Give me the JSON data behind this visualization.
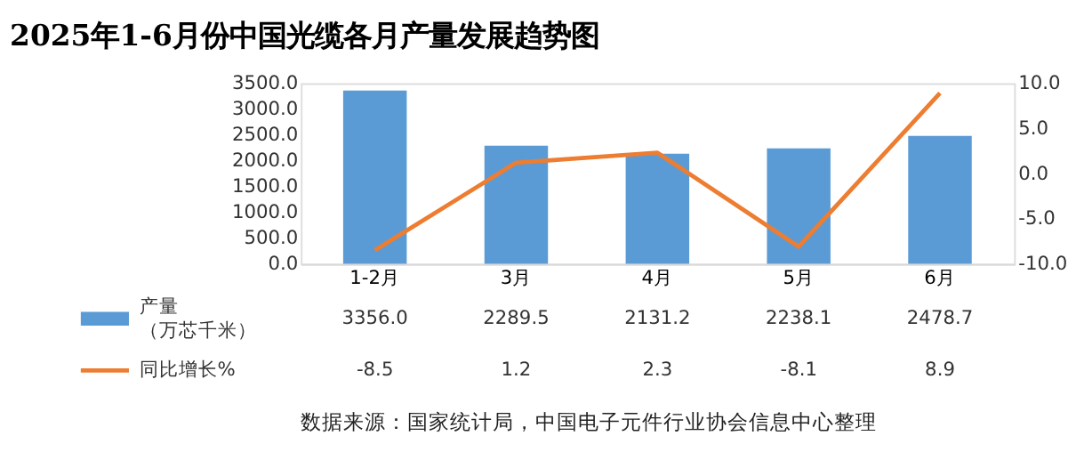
{
  "chart_data": {
    "type": "bar",
    "title": "2025年1-6月份中国光缆各月产量发展趋势图",
    "categories": [
      "1-2月",
      "3月",
      "4月",
      "5月",
      "6月"
    ],
    "series": [
      {
        "name": "产量（万芯千米）",
        "color": "#5b9bd5",
        "values": [
          3356.0,
          2289.5,
          2131.2,
          2238.1,
          2478.7
        ],
        "value_labels": [
          "3356.0",
          "2289.5",
          "2131.2",
          "2238.1",
          "2478.7"
        ]
      },
      {
        "name": "同比增长%",
        "type": "line",
        "axis": "y2",
        "color": "#ed7d31",
        "values": [
          -8.5,
          1.2,
          2.3,
          -8.1,
          8.9
        ],
        "value_labels": [
          "-8.5",
          "1.2",
          "2.3",
          "-8.1",
          "8.9"
        ]
      }
    ],
    "ylim": [
      0,
      3500
    ],
    "yticks": [
      {
        "value": 0,
        "label": "0.0"
      },
      {
        "value": 500,
        "label": "500.0"
      },
      {
        "value": 1000,
        "label": "1000.0"
      },
      {
        "value": 1500,
        "label": "1500.0"
      },
      {
        "value": 2000,
        "label": "2000.0"
      },
      {
        "value": 2500,
        "label": "2500.0"
      },
      {
        "value": 3000,
        "label": "3000.0"
      },
      {
        "value": 3500,
        "label": "3500.0"
      }
    ],
    "y2lim": [
      -10,
      10
    ],
    "y2ticks": [
      {
        "value": -10,
        "label": "-10.0"
      },
      {
        "value": -5,
        "label": "-5.0"
      },
      {
        "value": 0,
        "label": "0.0"
      },
      {
        "value": 5,
        "label": "5.0"
      },
      {
        "value": 10,
        "label": "10.0"
      }
    ],
    "legend": "bottom",
    "grid": false,
    "marker": "none",
    "line_style": "solid",
    "annotations": [
      "数据来源：国家统计局，中国电子元件行业协会信息中心整理"
    ]
  }
}
